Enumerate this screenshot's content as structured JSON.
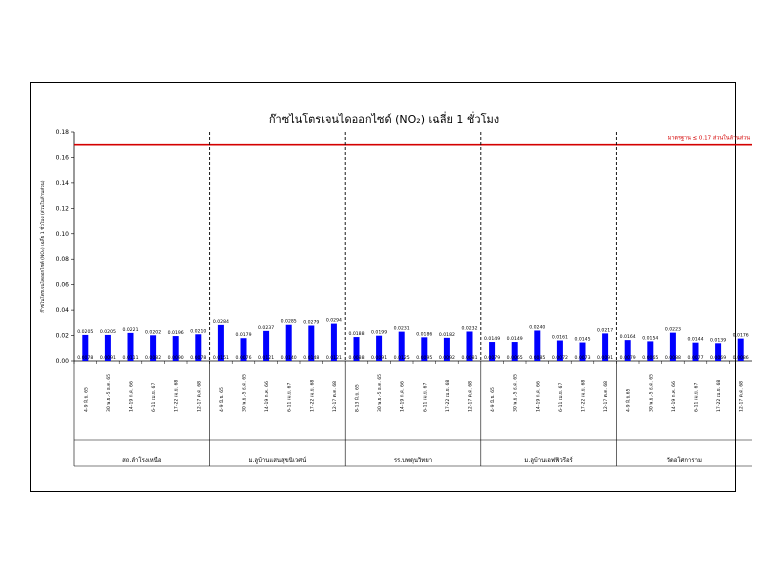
{
  "chart_data": {
    "type": "bar",
    "title": "ก๊าซไนโตรเจนไดออกไซด์ (NO₂) เฉลี่ย 1 ชั่วโมง",
    "ylabel": "ก๊าซไนโตรเจนไดออกไซด์ (NO₂) เฉลี่ย 1 ชั่วโมง (ส่วนในล้านส่วน)",
    "ylim": [
      0,
      0.18
    ],
    "yticks": [
      "0.00",
      "0.02",
      "0.04",
      "0.06",
      "0.08",
      "0.10",
      "0.12",
      "0.14",
      "0.16",
      "0.18"
    ],
    "standard": {
      "value": 0.17,
      "label": "มาตรฐาน ≤ 0.17 ส่วนในล้านส่วน",
      "color": "#d40000"
    },
    "bar_color": "#0000ff",
    "groups": [
      {
        "station": "สถ.ลำโรงเหนือ",
        "periods": [
          "4-9 มิ.ย. 65",
          "30 พ.ย.-5 ธ.ค. 65",
          "14-19 ก.ค. 66",
          "6-11 เม.ย. 67",
          "17-22 เม.ย. 68",
          "12-17 ต.ค. 68"
        ],
        "max": [
          0.0205,
          0.0205,
          0.0221,
          0.0202,
          0.0196,
          0.021
        ],
        "min": [
          0.0078,
          0.0091,
          0.0111,
          0.0082,
          0.009,
          0.0078
        ],
        "max_labels": [
          "0.0205",
          "0.0205",
          "0.0221",
          "0.0202",
          "0.0196",
          "0.0210"
        ],
        "min_labels": [
          "0.0078",
          "0.0091",
          "0.0111",
          "0.0082",
          "0.0090",
          "0.0078"
        ]
      },
      {
        "station": "ม.ลูบ้านแสนสุขนิเวศน์",
        "periods": [
          "4-9 มิ.ย. 65",
          "30 พ.ย.-5 ธ.ค. 65",
          "14-19 ก.ค. 66",
          "6-11 เม.ย. 67",
          "17-22 เม.ย. 68",
          "12-17 ต.ค. 68"
        ],
        "max": [
          0.0284,
          0.0179,
          0.0237,
          0.0285,
          0.0279,
          0.0294
        ],
        "min": [
          0.0151,
          0.0076,
          0.0121,
          0.014,
          0.0148,
          0.0121
        ],
        "max_labels": [
          "0.0284",
          "0.0179",
          "0.0237",
          "0.0285",
          "0.0279",
          "0.0294"
        ],
        "min_labels": [
          "0.0151",
          "0.0076",
          "0.0121",
          "0.0140",
          "0.0148",
          "0.0121"
        ]
      },
      {
        "station": "รร.บพดุนวิทยา",
        "periods": [
          "8-13 มิ.ย. 65",
          "30 พ.ย.-5 ธ.ค. 65",
          "14-19 ก.ค. 66",
          "6-11 เม.ย. 67",
          "17-22 เม.ย. 68",
          "12-17 ต.ค. 68"
        ],
        "max": [
          0.0188,
          0.0199,
          0.0231,
          0.0186,
          0.0182,
          0.0232
        ],
        "min": [
          0.0088,
          0.0091,
          0.0125,
          0.0095,
          0.0092,
          0.0081
        ],
        "max_labels": [
          "0.0188",
          "0.0199",
          "0.0231",
          "0.0186",
          "0.0182",
          "0.0232"
        ],
        "min_labels": [
          "0.0088",
          "0.0091",
          "0.0125",
          "0.0095",
          "0.0092",
          "0.0081"
        ]
      },
      {
        "station": "ม.ลูบ้านเอฟฟิวรีอร์",
        "periods": [
          "4-9 มิ.ย. 65",
          "30 พ.ย.-5 ธ.ค. 65",
          "14-19 ก.ค. 66",
          "6-11 เม.ย. 67",
          "17-22 เม.ย. 68",
          "12-17 ต.ค. 68"
        ],
        "max": [
          0.0149,
          0.0149,
          0.024,
          0.0161,
          0.0145,
          0.0217
        ],
        "min": [
          0.0079,
          0.0065,
          0.0085,
          0.0072,
          0.0073,
          0.0091
        ],
        "max_labels": [
          "0.0149",
          "0.0149",
          "0.0240",
          "0.0161",
          "0.0145",
          "0.0217"
        ],
        "min_labels": [
          "0.0079",
          "0.0065",
          "0.0085",
          "0.0072",
          "0.0073",
          "0.0091"
        ]
      },
      {
        "station": "วัดอโศการาม",
        "periods": [
          "4-9 มิ.ย.65",
          "30 พ.ย.-5 ธ.ค. 65",
          "14-19 ก.ค. 66",
          "6-11 เม.ย. 67",
          "17-22 เม.ย. 68",
          "12-17 ต.ค. 68"
        ],
        "max": [
          0.0164,
          0.0154,
          0.0223,
          0.0144,
          0.0139,
          0.0176
        ],
        "min": [
          0.0079,
          0.0065,
          0.0088,
          0.0077,
          0.0069,
          0.0086
        ],
        "max_labels": [
          "0.0164",
          "0.0154",
          "0.0223",
          "0.0144",
          "0.0139",
          "0.0176"
        ],
        "min_labels": [
          "0.0079",
          "0.0065",
          "0.0088",
          "0.0077",
          "0.0069",
          "0.0086"
        ]
      }
    ]
  }
}
